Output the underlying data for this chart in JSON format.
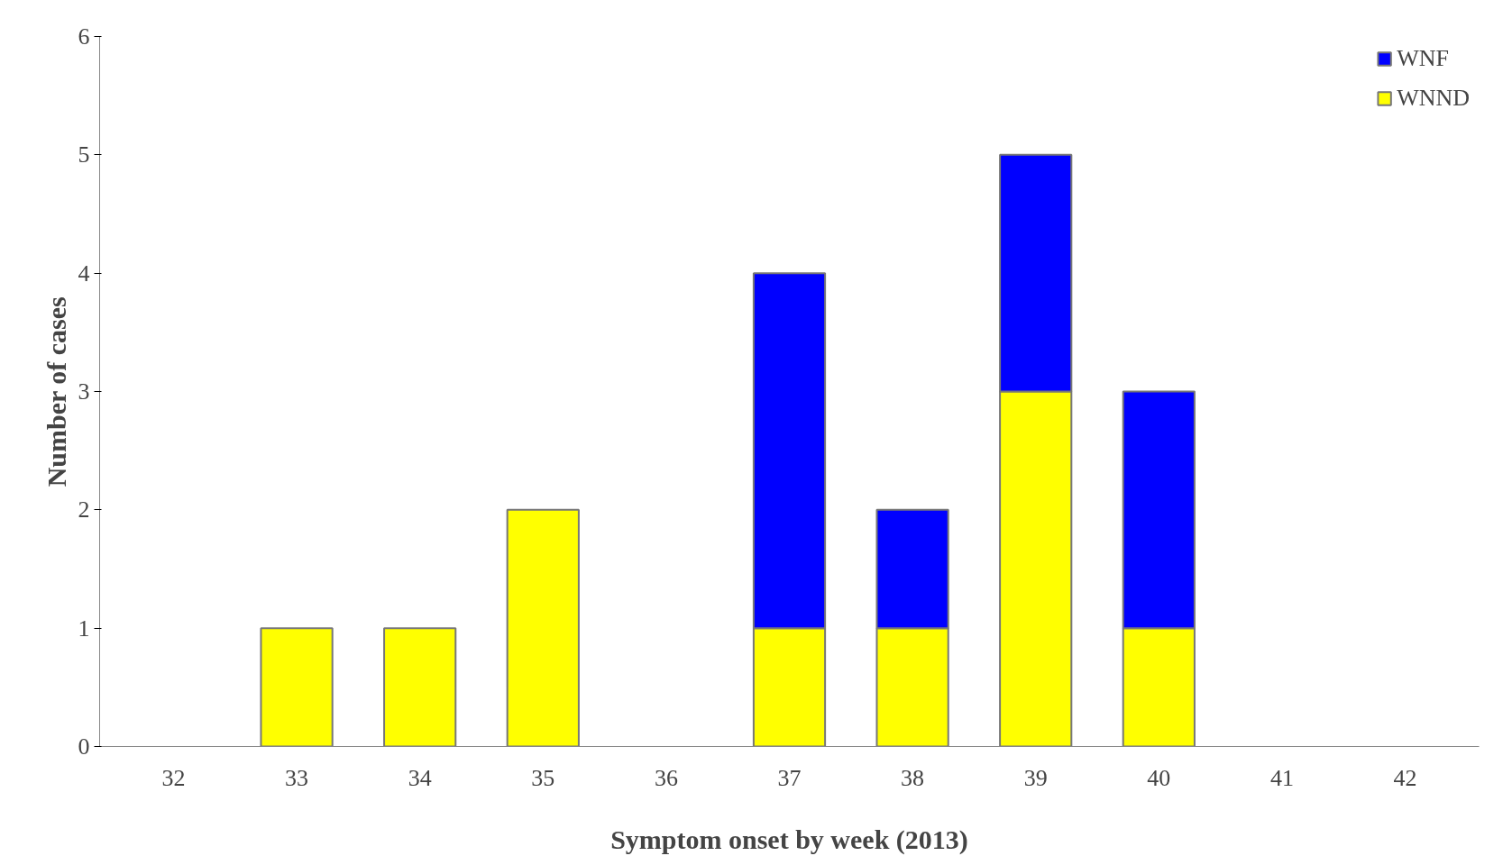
{
  "chart_data": {
    "type": "bar",
    "stacked": true,
    "xlabel": "Symptom onset by week (2013)",
    "ylabel": "Number of cases",
    "categories": [
      "32",
      "33",
      "34",
      "35",
      "36",
      "37",
      "38",
      "39",
      "40",
      "41",
      "42"
    ],
    "series": [
      {
        "name": "WNND",
        "color": "#ffff00",
        "values": [
          0,
          1,
          1,
          2,
          0,
          1,
          1,
          3,
          1,
          0,
          0
        ]
      },
      {
        "name": "WNF",
        "color": "#0000ff",
        "values": [
          0,
          0,
          0,
          0,
          0,
          3,
          1,
          2,
          2,
          0,
          0
        ]
      }
    ],
    "ylim": [
      0,
      6
    ],
    "yticks": [
      0,
      1,
      2,
      3,
      4,
      5,
      6
    ],
    "grid": false,
    "legend": "top right"
  }
}
